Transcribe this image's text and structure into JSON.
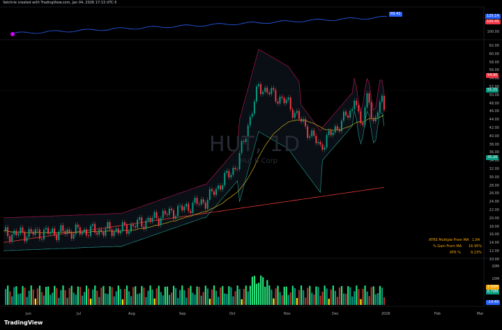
{
  "header": {
    "text": "Valchrie created with TradingView.com, Jan 04, 2026 17:13 UTC-5"
  },
  "watermark": {
    "ticker": "HUT, 1D",
    "sub": "Hut 8 Corp"
  },
  "rs_panel": {
    "rs_label": "RS 41",
    "rs_color": "#2962ff",
    "price_axis": [
      "100.00"
    ],
    "badges": [
      {
        "text": "125.14",
        "color": "#2962ff"
      },
      {
        "text": "100.45",
        "color": "#f23645"
      }
    ]
  },
  "price_axis": [
    "62.00",
    "60.00",
    "58.00",
    "56.00",
    "54.00",
    "52.00",
    "50.00",
    "48.00",
    "46.00",
    "44.00",
    "42.00",
    "40.00",
    "38.00",
    "36.00",
    "34.00",
    "32.00",
    "30.00",
    "28.00",
    "26.00",
    "24.00",
    "22.00",
    "20.00",
    "18.00",
    "16.00",
    "14.00",
    "12.00",
    "10.00"
  ],
  "price_badges": [
    {
      "text": "54.90",
      "color": "#f23645",
      "axis_value": 54.9
    },
    {
      "text": "51.21",
      "color": "#089981",
      "axis_value": 51.21
    },
    {
      "text": "35.20",
      "color": "#089981",
      "axis_value": 35.2
    }
  ],
  "stats": [
    {
      "label": "ATRS Multiple From MA",
      "value": "1.84"
    },
    {
      "label": "% Gain From MA",
      "value": "16.95%"
    },
    {
      "label": "ATR %",
      "value": "9.23%"
    }
  ],
  "volume_axis": [
    "20M",
    "15M",
    "10M"
  ],
  "volume_badges": [
    {
      "text": "7.65M",
      "color": "#f7a600"
    },
    {
      "text": "6.70M",
      "color": "#089981"
    },
    {
      "text": "-14.49",
      "color": "#2962ff"
    }
  ],
  "dates": [
    "Jun",
    "Jul",
    "Aug",
    "Sep",
    "Oct",
    "Nov",
    "Dec",
    "2026",
    "Feb",
    "Mar"
  ],
  "logo": "TradingView",
  "colors": {
    "up": "#089981",
    "down": "#f23645",
    "bb": "#c2185b",
    "ema": "#d4b020",
    "sma": "#e53935",
    "volume_high": "#26e07a",
    "volume_low": "#f5f500"
  }
}
